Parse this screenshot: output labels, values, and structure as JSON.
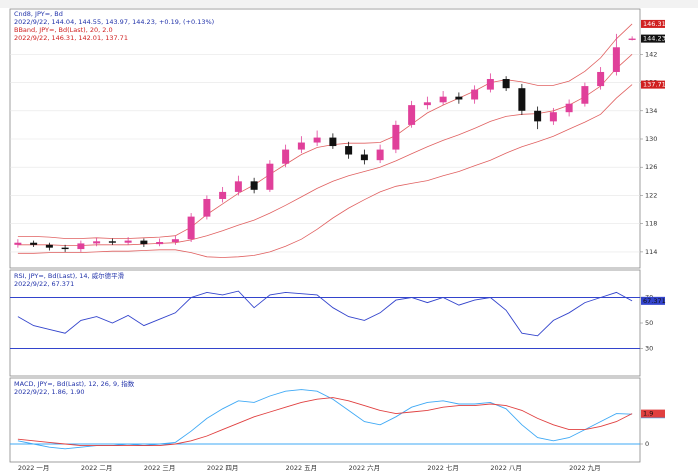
{
  "chart_data": [
    {
      "type": "candlestick",
      "title": "Cnd8, JPY=, Bd",
      "subtitle": "2022/9/22, 144.04, 144.55, 143.97, 144.23, +0.19, (+0.13%)",
      "annotations": [
        "BBand, JPY=, Bd(Last), 20, 2.0",
        "2022/9/22, 146.31, 142.01, 137.71"
      ],
      "categories": [
        null,
        "2022 一月",
        null,
        null,
        null,
        "2022 二月",
        null,
        null,
        null,
        "2022 三月",
        null,
        null,
        null,
        "2022 四月",
        null,
        null,
        null,
        null,
        "2022 五月",
        null,
        null,
        null,
        "2022 六月",
        null,
        null,
        null,
        null,
        "2022 七月",
        null,
        null,
        null,
        "2022 八月",
        null,
        null,
        null,
        null,
        "2022 九月",
        null,
        null,
        null
      ],
      "open": [
        115.0,
        115.3,
        115.0,
        114.6,
        114.4,
        115.2,
        115.5,
        115.3,
        115.6,
        115.1,
        115.4,
        115.8,
        119.0,
        121.5,
        122.5,
        124.0,
        122.8,
        126.5,
        128.5,
        129.5,
        130.2,
        129.0,
        127.8,
        127.0,
        128.5,
        132.0,
        134.8,
        135.2,
        136.0,
        135.6,
        137.0,
        138.5,
        137.2,
        134.0,
        132.5,
        133.8,
        135.0,
        137.5,
        139.5,
        144.04
      ],
      "high": [
        115.8,
        115.6,
        115.3,
        115.0,
        115.6,
        116.0,
        115.9,
        116.1,
        115.9,
        115.9,
        116.3,
        119.5,
        122.0,
        123.2,
        124.8,
        124.5,
        127.0,
        129.2,
        130.4,
        131.2,
        130.8,
        129.6,
        128.5,
        129.2,
        132.6,
        135.4,
        136.0,
        136.8,
        136.6,
        137.6,
        139.3,
        138.9,
        137.8,
        134.6,
        134.4,
        135.6,
        138.0,
        140.2,
        144.9,
        144.55
      ],
      "low": [
        114.6,
        114.7,
        114.2,
        114.0,
        114.0,
        114.8,
        115.0,
        115.0,
        114.7,
        114.8,
        115.0,
        115.4,
        118.6,
        121.0,
        122.0,
        122.3,
        122.5,
        126.0,
        128.0,
        129.0,
        128.6,
        127.2,
        126.4,
        126.6,
        128.0,
        131.6,
        134.2,
        134.8,
        135.0,
        135.0,
        136.6,
        136.8,
        133.4,
        131.4,
        132.0,
        133.2,
        134.6,
        137.0,
        139.0,
        143.97
      ],
      "close": [
        115.3,
        115.0,
        114.6,
        114.4,
        115.2,
        115.5,
        115.3,
        115.6,
        115.1,
        115.4,
        115.8,
        119.0,
        121.5,
        122.5,
        124.0,
        122.8,
        126.5,
        128.5,
        129.5,
        130.2,
        129.0,
        127.8,
        127.0,
        128.5,
        132.0,
        134.8,
        135.2,
        136.0,
        135.6,
        137.0,
        138.5,
        137.2,
        134.0,
        132.5,
        133.8,
        135.0,
        137.5,
        139.5,
        143.0,
        144.23
      ],
      "upper": [
        116.2,
        116.2,
        116.1,
        115.9,
        115.9,
        116.0,
        115.9,
        115.9,
        116.0,
        116.1,
        116.3,
        117.5,
        119.3,
        120.8,
        122.3,
        123.5,
        125.0,
        126.4,
        127.8,
        128.8,
        129.2,
        129.4,
        129.4,
        129.5,
        130.5,
        132.1,
        133.7,
        134.8,
        135.8,
        136.8,
        138.0,
        138.4,
        138.1,
        137.6,
        137.6,
        138.2,
        139.6,
        141.5,
        144.2,
        146.31
      ],
      "middle": [
        115.0,
        115.0,
        115.0,
        114.9,
        114.9,
        115.0,
        115.0,
        115.0,
        115.1,
        115.2,
        115.3,
        115.7,
        116.3,
        117.0,
        117.8,
        118.5,
        119.5,
        120.6,
        121.8,
        123.0,
        124.0,
        124.8,
        125.4,
        126.0,
        126.9,
        127.9,
        128.9,
        129.8,
        130.6,
        131.5,
        132.5,
        133.2,
        133.5,
        133.6,
        134.0,
        134.8,
        136.0,
        137.5,
        140.0,
        142.01
      ],
      "lower": [
        113.8,
        113.8,
        113.9,
        113.9,
        113.9,
        114.0,
        114.1,
        114.1,
        114.2,
        114.3,
        114.3,
        113.9,
        113.3,
        113.2,
        113.3,
        113.5,
        114.0,
        114.8,
        115.8,
        117.2,
        118.8,
        120.2,
        121.4,
        122.5,
        123.3,
        123.7,
        124.1,
        124.8,
        125.4,
        126.2,
        127.0,
        128.0,
        128.9,
        129.6,
        130.4,
        131.4,
        132.4,
        133.5,
        135.8,
        137.71
      ],
      "up_color": "#e0409a",
      "down_color": "#111111",
      "band_color": "#e06060",
      "ylim": [
        112,
        148
      ],
      "yticks": [
        114,
        118,
        122,
        126,
        130,
        134,
        138,
        142
      ],
      "grid": true
    },
    {
      "type": "line",
      "title": "RSI, JPY=, Bd(Last), 14, 威尔德平滑",
      "subtitle": "2022/9/22, 67.371",
      "series": [
        {
          "color": "#3344cc",
          "values": [
            55,
            48,
            45,
            42,
            52,
            55,
            50,
            56,
            48,
            53,
            58,
            70,
            74,
            72,
            75,
            62,
            72,
            74,
            73,
            72,
            62,
            55,
            52,
            58,
            68,
            70,
            66,
            70,
            64,
            68,
            70,
            60,
            42,
            40,
            52,
            58,
            66,
            70,
            74,
            67.371
          ]
        }
      ],
      "levels": [
        70,
        30
      ],
      "level_color": "#3344cc",
      "ylim": [
        10,
        90
      ],
      "yticks": [
        30,
        50,
        70
      ]
    },
    {
      "type": "line",
      "title": "MACD, JPY=, Bd(Last), 12, 26, 9, 指数",
      "subtitle": "2022/9/22, 1.86, 1.90",
      "series": [
        {
          "color": "#3fa9f5",
          "values": [
            0.2,
            0.0,
            -0.2,
            -0.3,
            -0.2,
            -0.1,
            -0.1,
            0.0,
            -0.1,
            0.0,
            0.1,
            0.8,
            1.6,
            2.2,
            2.7,
            2.6,
            3.0,
            3.3,
            3.4,
            3.3,
            2.8,
            2.1,
            1.4,
            1.2,
            1.7,
            2.3,
            2.6,
            2.7,
            2.5,
            2.5,
            2.6,
            2.2,
            1.2,
            0.4,
            0.2,
            0.4,
            0.9,
            1.4,
            1.9,
            1.86
          ]
        },
        {
          "color": "#e04040",
          "values": [
            0.3,
            0.2,
            0.1,
            0.0,
            -0.1,
            -0.1,
            -0.1,
            -0.1,
            -0.1,
            -0.1,
            0.0,
            0.2,
            0.5,
            0.9,
            1.3,
            1.7,
            2.0,
            2.3,
            2.6,
            2.8,
            2.9,
            2.7,
            2.4,
            2.1,
            1.9,
            2.0,
            2.1,
            2.3,
            2.4,
            2.4,
            2.5,
            2.4,
            2.1,
            1.6,
            1.2,
            0.9,
            0.9,
            1.1,
            1.4,
            1.9
          ]
        }
      ],
      "levels": [
        0
      ],
      "level_color": "#3fa9f5",
      "ylim": [
        -1,
        4
      ],
      "yticks": [
        0
      ]
    }
  ]
}
